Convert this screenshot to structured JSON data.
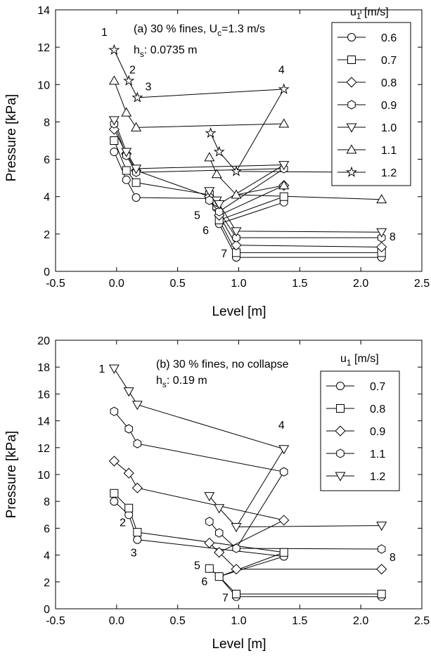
{
  "chart_data": [
    {
      "type": "line",
      "annotation_line1": "(a) 30 % fines, U",
      "annotation_line1_sub": "c",
      "annotation_line1_tail": "=1.3 m/s",
      "annotation_line2": "h",
      "annotation_line2_sub": "s",
      "annotation_line2_tail": ": 0.0735 m",
      "xlabel": "Level [m]",
      "ylabel": "Pressure [kPa]",
      "xlim": [
        -0.5,
        2.5
      ],
      "ylim": [
        0,
        14
      ],
      "xticks": [
        "-0.5",
        "0.0",
        "0.5",
        "1.0",
        "1.5",
        "2.0",
        "2.5"
      ],
      "yticks": [
        "0",
        "2",
        "4",
        "6",
        "8",
        "10",
        "12",
        "14"
      ],
      "legend_title": "u",
      "legend_title_sub": "1",
      "legend_title_tail": " [m/s]",
      "legend_position": "top-right",
      "series": [
        {
          "name": "0.6",
          "marker": "circle",
          "segments": [
            [
              [
                -0.02,
                6.4
              ],
              [
                0.08,
                4.9
              ],
              [
                0.16,
                3.95
              ],
              [
                0.76,
                3.9
              ],
              [
                0.82,
                3.4
              ],
              [
                0.84,
                2.55
              ],
              [
                0.98,
                0.75
              ],
              [
                2.17,
                0.75
              ]
            ],
            [
              [
                0.84,
                2.55
              ],
              [
                1.37,
                3.7
              ]
            ]
          ]
        },
        {
          "name": "0.7",
          "marker": "square",
          "segments": [
            [
              [
                -0.02,
                7.0
              ],
              [
                0.08,
                5.4
              ],
              [
                0.16,
                4.75
              ],
              [
                0.76,
                4.1
              ],
              [
                0.82,
                3.5
              ],
              [
                0.84,
                2.75
              ],
              [
                0.98,
                1.0
              ],
              [
                2.17,
                1.0
              ]
            ],
            [
              [
                0.84,
                2.75
              ],
              [
                1.37,
                4.0
              ]
            ]
          ]
        },
        {
          "name": "0.8",
          "marker": "diamond",
          "segments": [
            [
              [
                -0.02,
                7.6
              ],
              [
                0.08,
                6.3
              ],
              [
                0.16,
                5.4
              ],
              [
                0.76,
                4.0
              ],
              [
                0.82,
                3.6
              ],
              [
                0.84,
                3.0
              ],
              [
                0.98,
                1.4
              ],
              [
                2.17,
                1.3
              ]
            ],
            [
              [
                0.84,
                3.0
              ],
              [
                1.37,
                4.6
              ]
            ]
          ]
        },
        {
          "name": "0.9",
          "marker": "hexagon",
          "segments": [
            [
              [
                -0.02,
                7.9
              ],
              [
                0.08,
                6.2
              ],
              [
                0.16,
                5.3
              ],
              [
                1.37,
                5.5
              ]
            ],
            [
              [
                0.76,
                3.8
              ],
              [
                0.82,
                3.7
              ],
              [
                0.84,
                3.2
              ],
              [
                0.98,
                1.8
              ],
              [
                2.17,
                1.8
              ]
            ],
            [
              [
                0.84,
                3.2
              ],
              [
                1.37,
                5.5
              ]
            ]
          ]
        },
        {
          "name": "1.0",
          "marker": "triangle-down",
          "segments": [
            [
              [
                -0.02,
                8.1
              ],
              [
                0.08,
                6.4
              ],
              [
                0.16,
                5.5
              ],
              [
                1.37,
                5.7
              ]
            ],
            [
              [
                0.76,
                4.3
              ],
              [
                0.82,
                3.8
              ],
              [
                0.84,
                3.6
              ],
              [
                0.98,
                2.15
              ],
              [
                2.17,
                2.1
              ]
            ],
            [
              [
                0.84,
                3.6
              ],
              [
                1.37,
                5.7
              ]
            ]
          ]
        },
        {
          "name": "1.1",
          "marker": "triangle-up",
          "segments": [
            [
              [
                -0.02,
                10.2
              ],
              [
                0.08,
                8.5
              ],
              [
                0.16,
                7.7
              ],
              [
                1.37,
                7.9
              ]
            ],
            [
              [
                0.76,
                6.1
              ],
              [
                0.82,
                5.2
              ],
              [
                0.98,
                4.1
              ],
              [
                2.17,
                3.85
              ]
            ],
            [
              [
                0.98,
                4.1
              ],
              [
                1.37,
                4.6
              ]
            ]
          ]
        },
        {
          "name": "1.2",
          "marker": "star",
          "segments": [
            [
              [
                -0.02,
                11.85
              ],
              [
                0.1,
                10.2
              ],
              [
                0.17,
                9.3
              ],
              [
                1.37,
                9.75
              ]
            ],
            [
              [
                0.77,
                7.4
              ],
              [
                0.84,
                6.4
              ],
              [
                0.98,
                5.35
              ],
              [
                2.17,
                5.3
              ]
            ],
            [
              [
                0.98,
                5.35
              ],
              [
                1.37,
                9.75
              ]
            ]
          ]
        }
      ],
      "point_labels": [
        {
          "text": "1",
          "x": -0.1,
          "y": 12.6
        },
        {
          "text": "2",
          "x": 0.13,
          "y": 10.6
        },
        {
          "text": "3",
          "x": 0.26,
          "y": 9.7
        },
        {
          "text": "4",
          "x": 1.35,
          "y": 10.6
        },
        {
          "text": "5",
          "x": 0.66,
          "y": 2.8
        },
        {
          "text": "6",
          "x": 0.73,
          "y": 2.0
        },
        {
          "text": "7",
          "x": 0.88,
          "y": 0.75
        },
        {
          "text": "8",
          "x": 2.26,
          "y": 1.65
        }
      ]
    },
    {
      "type": "line",
      "annotation_line1": "(b) 30 % fines, no collapse",
      "annotation_line2": "h",
      "annotation_line2_sub": "s",
      "annotation_line2_tail": ": 0.19 m",
      "xlabel": "Level [m]",
      "ylabel": "Pressure [kPa]",
      "xlim": [
        -0.5,
        2.5
      ],
      "ylim": [
        0,
        20
      ],
      "xticks": [
        "-0.5",
        "0.0",
        "0.5",
        "1.0",
        "1.5",
        "2.0",
        "2.5"
      ],
      "yticks": [
        "0",
        "2",
        "4",
        "6",
        "8",
        "10",
        "12",
        "14",
        "16",
        "18",
        "20"
      ],
      "legend_title": "u",
      "legend_title_sub": "1",
      "legend_title_tail": " [m/s]",
      "legend_position": "top-right",
      "series": [
        {
          "name": "0.7",
          "marker": "circle",
          "segments": [
            [
              [
                -0.02,
                8.0
              ],
              [
                0.1,
                7.0
              ],
              [
                0.17,
                5.15
              ],
              [
                1.37,
                3.9
              ]
            ],
            [
              [
                0.76,
                3.0
              ],
              [
                0.84,
                2.4
              ],
              [
                0.98,
                0.9
              ],
              [
                2.17,
                0.9
              ]
            ],
            [
              [
                0.84,
                2.4
              ],
              [
                1.37,
                3.9
              ]
            ]
          ]
        },
        {
          "name": "0.8",
          "marker": "square",
          "segments": [
            [
              [
                -0.02,
                8.6
              ],
              [
                0.1,
                7.5
              ],
              [
                0.17,
                5.7
              ],
              [
                1.37,
                4.2
              ]
            ],
            [
              [
                0.76,
                3.0
              ],
              [
                0.84,
                2.4
              ],
              [
                0.98,
                1.1
              ],
              [
                2.17,
                1.1
              ]
            ],
            [
              [
                0.84,
                2.4
              ],
              [
                1.37,
                4.2
              ]
            ]
          ]
        },
        {
          "name": "0.9",
          "marker": "diamond",
          "segments": [
            [
              [
                -0.02,
                11.0
              ],
              [
                0.1,
                10.1
              ],
              [
                0.17,
                9.0
              ],
              [
                1.37,
                6.6
              ]
            ],
            [
              [
                0.76,
                4.9
              ],
              [
                0.84,
                4.2
              ],
              [
                0.98,
                2.95
              ],
              [
                2.17,
                2.95
              ]
            ],
            [
              [
                0.84,
                4.2
              ],
              [
                1.37,
                6.6
              ]
            ]
          ]
        },
        {
          "name": "1.1",
          "marker": "hexagon",
          "segments": [
            [
              [
                -0.02,
                14.7
              ],
              [
                0.1,
                13.4
              ],
              [
                0.17,
                12.3
              ],
              [
                1.37,
                10.2
              ]
            ],
            [
              [
                0.76,
                6.5
              ],
              [
                0.84,
                5.65
              ],
              [
                0.98,
                4.5
              ],
              [
                2.17,
                4.45
              ]
            ],
            [
              [
                0.98,
                4.5
              ],
              [
                1.37,
                10.2
              ]
            ]
          ]
        },
        {
          "name": "1.2",
          "marker": "triangle-down",
          "segments": [
            [
              [
                -0.02,
                17.9
              ],
              [
                0.1,
                16.2
              ],
              [
                0.17,
                15.2
              ],
              [
                1.37,
                11.9
              ]
            ],
            [
              [
                0.76,
                8.4
              ],
              [
                0.84,
                7.5
              ],
              [
                0.98,
                6.1
              ],
              [
                2.17,
                6.2
              ]
            ],
            [
              [
                0.98,
                6.1
              ],
              [
                1.37,
                11.9
              ]
            ]
          ]
        }
      ],
      "point_labels": [
        {
          "text": "1",
          "x": -0.12,
          "y": 17.6
        },
        {
          "text": "2",
          "x": 0.05,
          "y": 6.15
        },
        {
          "text": "3",
          "x": 0.14,
          "y": 3.9
        },
        {
          "text": "4",
          "x": 1.35,
          "y": 13.4
        },
        {
          "text": "5",
          "x": 0.66,
          "y": 2.95
        },
        {
          "text": "6",
          "x": 0.72,
          "y": 1.75
        },
        {
          "text": "7",
          "x": 0.89,
          "y": 0.55
        },
        {
          "text": "8",
          "x": 2.26,
          "y": 3.55
        }
      ]
    }
  ]
}
